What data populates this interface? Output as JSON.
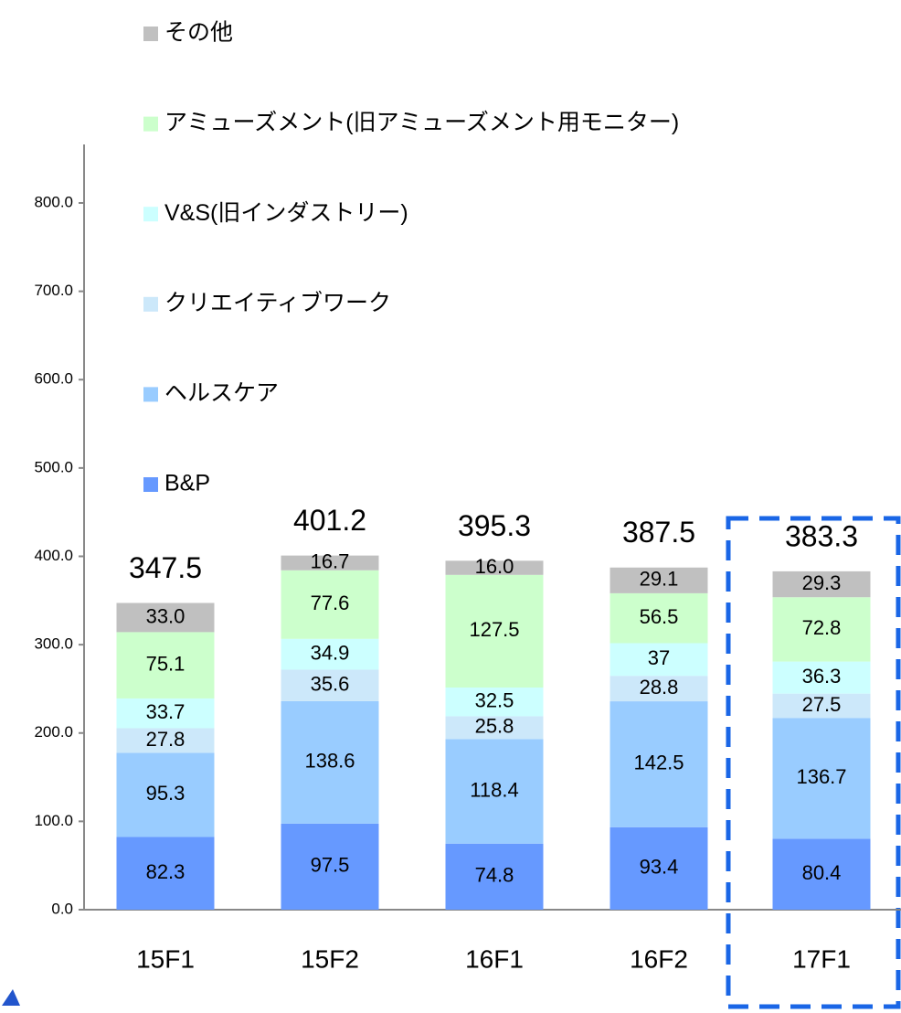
{
  "chart_data": {
    "type": "stacked_bar",
    "categories": [
      "15F1",
      "15F2",
      "16F1",
      "16F2",
      "17F1"
    ],
    "series": [
      {
        "name": "B&P",
        "color": "#6699ff",
        "values": [
          82.3,
          97.5,
          74.8,
          93.4,
          80.4
        ]
      },
      {
        "name": "ヘルスケア",
        "color": "#99ccff",
        "values": [
          95.3,
          138.6,
          118.4,
          142.5,
          136.7
        ]
      },
      {
        "name": "クリエイティブワーク",
        "color": "#cce8fa",
        "values": [
          27.8,
          35.6,
          25.8,
          28.8,
          27.5
        ]
      },
      {
        "name": "V&S(旧インダストリー)",
        "color": "#ccffff",
        "values": [
          33.7,
          34.9,
          32.5,
          37.0,
          36.3
        ]
      },
      {
        "name": "アミューズメント(旧アミューズメント用モニター)",
        "color": "#ccffcc",
        "values": [
          75.1,
          77.6,
          127.5,
          56.5,
          72.8
        ]
      },
      {
        "name": "その他",
        "color": "#c0c0c0",
        "values": [
          33.0,
          16.7,
          16.0,
          29.1,
          29.3
        ],
        "value_labels": [
          "33.0",
          "16.7",
          "16.0",
          "29.1",
          "29.3"
        ]
      }
    ],
    "totals": [
      347.5,
      401.2,
      395.3,
      387.5,
      383.3
    ],
    "ylim": [
      0,
      800
    ],
    "yticks": [
      {
        "value": 0,
        "label": "0.0"
      },
      {
        "value": 100,
        "label": "100.0"
      },
      {
        "value": 200,
        "label": "200.0"
      },
      {
        "value": 300,
        "label": "300.0"
      },
      {
        "value": 400,
        "label": "400.0"
      },
      {
        "value": 500,
        "label": "500.0"
      },
      {
        "value": 600,
        "label": "600.0"
      },
      {
        "value": 700,
        "label": "700.0"
      },
      {
        "value": 800,
        "label": "800.0"
      }
    ]
  }
}
